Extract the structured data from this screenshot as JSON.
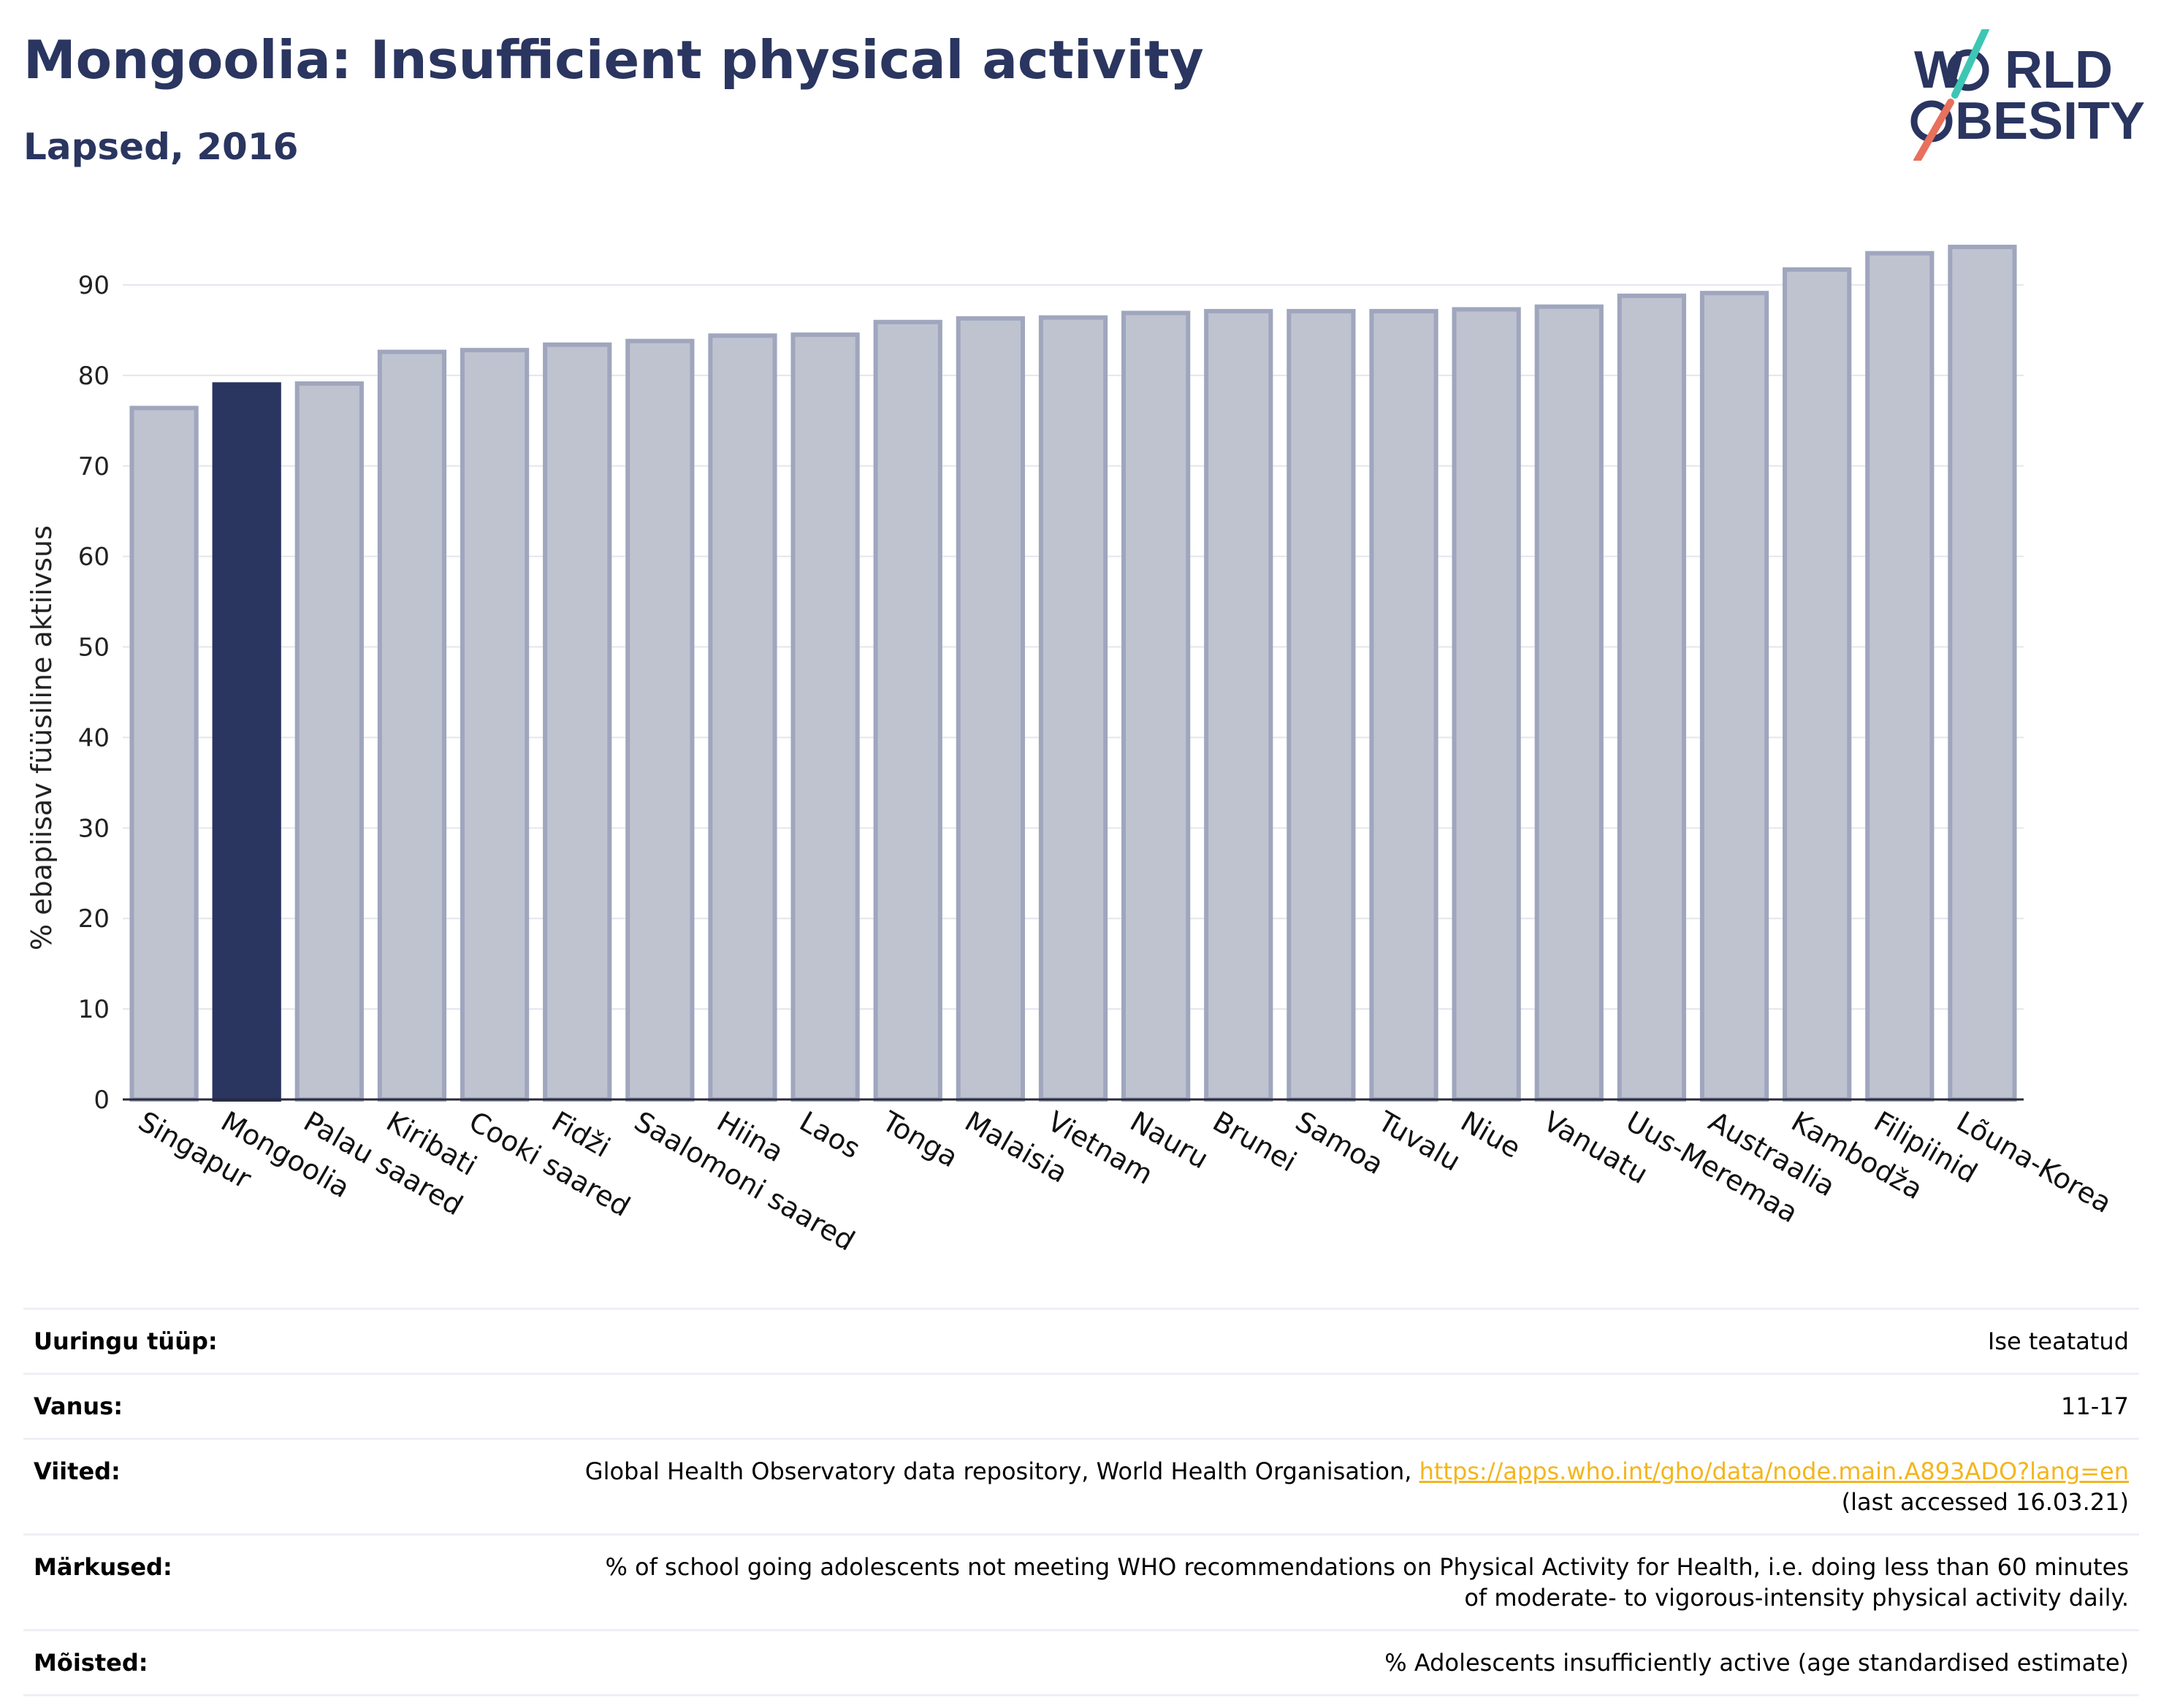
{
  "header": {
    "title": "Mongoolia: Insufficient physical activity",
    "subtitle": "Lapsed, 2016"
  },
  "logo": {
    "line1_pre": "W",
    "line1_post": "RLD",
    "line2_pre": "",
    "line2_post": "BESITY",
    "slash_colors": [
      "#3ec6b4",
      "#e8705c"
    ]
  },
  "colors": {
    "title": "#2a3560",
    "highlight_bar": "#2a3560",
    "bar_fill": "#bfc3d0",
    "bar_stroke": "#9fa6bd",
    "link": "#f4b51c"
  },
  "chart_data": {
    "type": "bar",
    "ylabel": "% ebapiisav füüsiline aktiivsus",
    "ylim": [
      0,
      95
    ],
    "yticks": [
      0,
      10,
      20,
      30,
      40,
      50,
      60,
      70,
      80,
      90
    ],
    "grid": true,
    "highlight": "Mongoolia",
    "categories": [
      "Singapur",
      "Mongoolia",
      "Palau saared",
      "Kiribati",
      "Cooki saared",
      "Fidži",
      "Saalomoni saared",
      "Hiina",
      "Laos",
      "Tonga",
      "Malaisia",
      "Vietnam",
      "Nauru",
      "Brunei",
      "Samoa",
      "Tuvalu",
      "Niue",
      "Vanuatu",
      "Uus-Meremaa",
      "Austraalia",
      "Kambodža",
      "Filipiinid",
      "Lõuna-Korea"
    ],
    "values": [
      76.4,
      79.0,
      79.1,
      82.6,
      82.8,
      83.4,
      83.8,
      84.4,
      84.5,
      85.9,
      86.3,
      86.4,
      86.9,
      87.1,
      87.1,
      87.1,
      87.3,
      87.6,
      88.8,
      89.1,
      91.7,
      93.5,
      94.2
    ]
  },
  "meta": {
    "survey_type": {
      "label": "Uuringu tüüp:",
      "value": "Ise teatatud"
    },
    "age": {
      "label": "Vanus:",
      "value": "11-17"
    },
    "references": {
      "label": "Viited:",
      "text": "Global Health Observatory data repository, World Health Organisation, ",
      "link": "https://apps.who.int/gho/data/node.main.A893ADO?lang=en",
      "accessed": "(last accessed 16.03.21)"
    },
    "notes": {
      "label": "Märkused:",
      "value": "% of school going adolescents not meeting WHO recommendations on Physical Activity for Health, i.e. doing less than 60 minutes of moderate- to vigorous-intensity physical activity daily."
    },
    "definitions": {
      "label": "Mõisted:",
      "value": "% Adolescents insufficiently active (age standardised estimate)"
    }
  }
}
